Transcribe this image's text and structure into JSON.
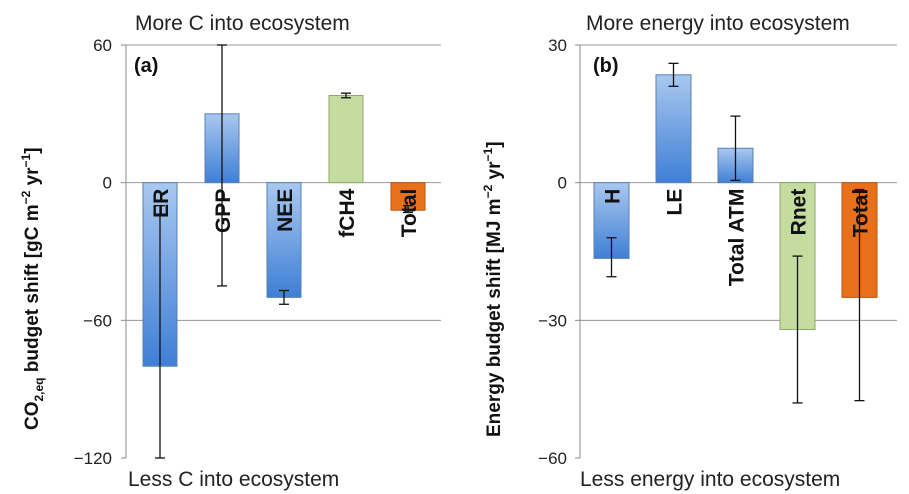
{
  "chart_data": [
    {
      "type": "bar",
      "panel_label": "(a)",
      "top_annotation": "More C into ecosystem",
      "bottom_annotation": "Less C into ecosystem",
      "ylabel_main": "CO",
      "ylabel_sub": "2,eq",
      "ylabel_rest": " budget shift [gC m",
      "ylabel_sup1": "−2",
      "ylabel_mid": " yr",
      "ylabel_sup2": "−1",
      "ylabel_end": "]",
      "ylim": [
        -120,
        60
      ],
      "yticks": [
        "60",
        "0",
        "−60",
        "−120"
      ],
      "ytick_values": [
        60,
        0,
        -60,
        -120
      ],
      "gridlines": [
        60,
        0,
        -60
      ],
      "categories": [
        "ER",
        "GPP",
        "NEE",
        "fCH4",
        "Total"
      ],
      "values": [
        -80,
        30,
        -50,
        38,
        -12
      ],
      "errors": [
        {
          "low": -120,
          "high": -10
        },
        {
          "low": -45,
          "high": 60
        },
        {
          "low": -53,
          "high": -47
        },
        {
          "low": 37,
          "high": 39
        },
        {
          "low": -13,
          "high": -10
        }
      ],
      "bar_styles": [
        "blue",
        "blue",
        "blue",
        "green",
        "orange"
      ]
    },
    {
      "type": "bar",
      "panel_label": "(b)",
      "top_annotation": "More energy into ecosystem",
      "bottom_annotation": "Less energy into ecosystem",
      "ylabel_main": "Energy budget shift [MJ m",
      "ylabel_sup1": "−2",
      "ylabel_mid": " yr",
      "ylabel_sup2": "−1",
      "ylabel_end": "]",
      "ylim": [
        -60,
        30
      ],
      "yticks": [
        "30",
        "0",
        "−30",
        "−60"
      ],
      "ytick_values": [
        30,
        0,
        -30,
        -60
      ],
      "gridlines": [
        30,
        0,
        -30
      ],
      "categories": [
        "H",
        "LE",
        "Total ATM",
        "Rnet",
        "Total"
      ],
      "values": [
        -16.5,
        23.5,
        7.5,
        -32,
        -25
      ],
      "errors": [
        {
          "low": -20.5,
          "high": -12
        },
        {
          "low": 21,
          "high": 26
        },
        {
          "low": 0.5,
          "high": 14.5
        },
        {
          "low": -48,
          "high": -16
        },
        {
          "low": -47.5,
          "high": -1.5
        }
      ],
      "bar_styles": [
        "blue",
        "blue",
        "blue",
        "green",
        "orange"
      ]
    }
  ]
}
